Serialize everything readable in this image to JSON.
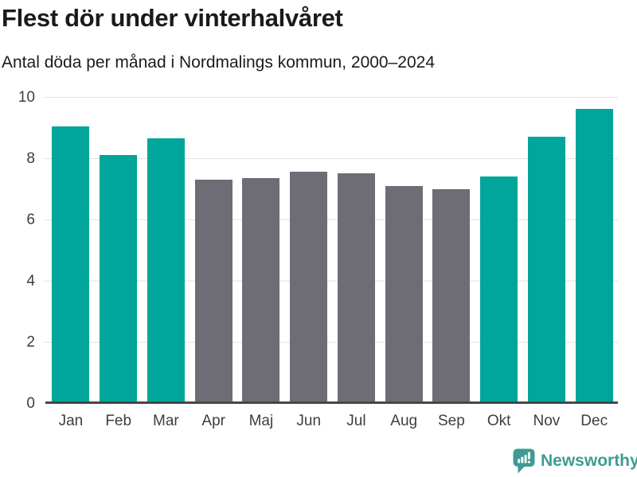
{
  "chart_data": {
    "type": "bar",
    "title": "Flest dör under vinterhalvåret",
    "subtitle": "Antal döda per månad i Nordmalings kommun, 2000–2024",
    "categories": [
      "Jan",
      "Feb",
      "Mar",
      "Apr",
      "Maj",
      "Jun",
      "Jul",
      "Aug",
      "Sep",
      "Okt",
      "Nov",
      "Dec"
    ],
    "values": [
      9.05,
      8.1,
      8.65,
      7.3,
      7.35,
      7.55,
      7.5,
      7.1,
      7.0,
      7.4,
      8.7,
      9.6
    ],
    "colors": [
      "#00a699",
      "#00a699",
      "#00a699",
      "#6e6d76",
      "#6e6d76",
      "#6e6d76",
      "#6e6d76",
      "#6e6d76",
      "#6e6d76",
      "#00a699",
      "#00a699",
      "#00a699"
    ],
    "color_legend": {
      "winter_months": "#00a699",
      "summer_months": "#6e6d76"
    },
    "xlabel": "",
    "ylabel": "",
    "ylim": [
      0,
      10
    ],
    "yticks": [
      0,
      2,
      4,
      6,
      8,
      10
    ],
    "grid": "horizontal-light",
    "legend": "none",
    "axis_line_color": "#474747",
    "gridline_color": "#e2e2e2"
  },
  "footer": {
    "brand": "Newsworthy",
    "brand_color": "#3f9b94",
    "logo_icon": "bar-chart-speech-bubble"
  }
}
